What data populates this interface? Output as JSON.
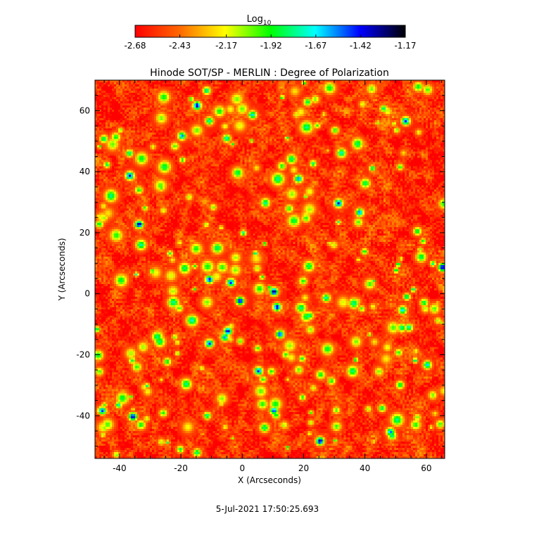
{
  "chart_data": {
    "type": "heatmap",
    "title": "Hinode SOT/SP - MERLIN : Degree of Polarization",
    "xlabel": "X (Arcseconds)",
    "ylabel": "Y (Arcseconds)",
    "xlim": [
      -48,
      66
    ],
    "ylim": [
      -54,
      70
    ],
    "x_ticks": [
      "-40",
      "-20",
      "0",
      "20",
      "40",
      "60"
    ],
    "x_tick_values": [
      -40,
      -20,
      0,
      20,
      40,
      60
    ],
    "y_ticks": [
      "-40",
      "-20",
      "0",
      "20",
      "40",
      "60"
    ],
    "y_tick_values": [
      -40,
      -20,
      0,
      20,
      40,
      60
    ],
    "colorbar": {
      "label_main": "Log",
      "label_sub": "10",
      "range": [
        -2.68,
        -1.17
      ],
      "ticks": [
        "-2.68",
        "-2.43",
        "-2.17",
        "-1.92",
        "-1.67",
        "-1.42",
        "-1.17"
      ],
      "tick_values": [
        -2.68,
        -2.43,
        -2.17,
        -1.92,
        -1.67,
        -1.42,
        -1.17
      ],
      "colormap_stops": [
        "#ff0000",
        "#ff6a00",
        "#ffff00",
        "#00ff00",
        "#00ffff",
        "#0000ff",
        "#000000"
      ]
    },
    "background_level": -2.6,
    "features": [
      {
        "x": -15,
        "y": 62,
        "value": -1.45
      },
      {
        "x": 3,
        "y": 59,
        "value": -1.8
      },
      {
        "x": -20,
        "y": 52,
        "value": -1.7
      },
      {
        "x": -37,
        "y": 39,
        "value": -1.5
      },
      {
        "x": -34,
        "y": 23,
        "value": -1.45
      },
      {
        "x": -11,
        "y": 57,
        "value": -1.9
      },
      {
        "x": 18,
        "y": 38,
        "value": -1.7
      },
      {
        "x": 31,
        "y": 30,
        "value": -1.5
      },
      {
        "x": 38,
        "y": 27,
        "value": -1.7
      },
      {
        "x": 53,
        "y": 57,
        "value": -1.6
      },
      {
        "x": 65,
        "y": 9,
        "value": -1.45
      },
      {
        "x": -11,
        "y": 5,
        "value": -1.55
      },
      {
        "x": -4,
        "y": 4,
        "value": -1.6
      },
      {
        "x": -1,
        "y": -2,
        "value": -1.5
      },
      {
        "x": 10,
        "y": 1,
        "value": -1.4
      },
      {
        "x": 11,
        "y": -4,
        "value": -1.5
      },
      {
        "x": -5,
        "y": -12,
        "value": -1.5
      },
      {
        "x": -11,
        "y": -16,
        "value": -1.6
      },
      {
        "x": 12,
        "y": -13,
        "value": -1.6
      },
      {
        "x": 5,
        "y": -25,
        "value": -1.6
      },
      {
        "x": 10,
        "y": -38,
        "value": -1.6
      },
      {
        "x": 25,
        "y": -48,
        "value": -1.45
      },
      {
        "x": -36,
        "y": -40,
        "value": -1.5
      },
      {
        "x": -46,
        "y": -38,
        "value": -1.6
      },
      {
        "x": 48,
        "y": -45,
        "value": -1.7
      },
      {
        "x": 60,
        "y": -23,
        "value": -1.8
      },
      {
        "x": 52,
        "y": -5,
        "value": -1.8
      },
      {
        "x": 27,
        "y": -1,
        "value": -1.9
      },
      {
        "x": -6,
        "y": -14,
        "value": -1.75
      }
    ]
  },
  "footer": {
    "timestamp": "5-Jul-2021 17:50:25.693"
  }
}
